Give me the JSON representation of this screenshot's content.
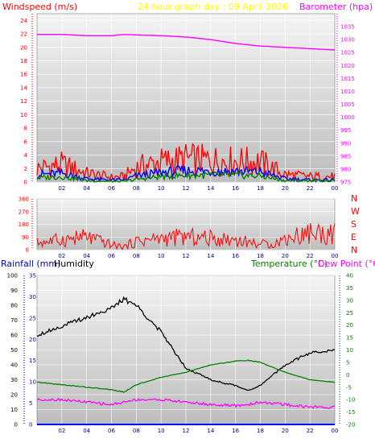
{
  "chart_data": [
    {
      "id": "top",
      "type": "line",
      "title": "24 hour graph day : 09 April 2026",
      "ylabel_left": "Windspeed (m/s)",
      "ylabel_right": "Barometer (hpa)",
      "x_ticks": [
        "02",
        "04",
        "06",
        "08",
        "10",
        "12",
        "14",
        "16",
        "18",
        "20",
        "22",
        "00"
      ],
      "ylim_left": [
        0,
        25
      ],
      "yticks_left": [
        "0",
        "2",
        "4",
        "6",
        "8",
        "10",
        "12",
        "14",
        "16",
        "18",
        "20",
        "22",
        "24"
      ],
      "ylim_right": [
        975,
        1040
      ],
      "yticks_right": [
        "975",
        "980",
        "985",
        "990",
        "995",
        "1000",
        "1005",
        "1010",
        "1015",
        "1020",
        "1025",
        "1030",
        "1035"
      ],
      "hours": [
        0,
        2,
        4,
        6,
        7,
        8,
        10,
        12,
        14,
        16,
        18,
        20,
        22,
        24
      ],
      "series": [
        {
          "key": "gust",
          "color": "#ff0000",
          "axis": "left",
          "values": [
            2.0,
            2.6,
            1.3,
            0.7,
            0.8,
            2.2,
            3.0,
            3.4,
            3.2,
            3.1,
            3.0,
            1.1,
            0.8,
            0.8
          ]
        },
        {
          "key": "avg",
          "color": "#0000ff",
          "axis": "left",
          "values": [
            1.1,
            1.3,
            0.5,
            0.3,
            0.3,
            0.9,
            1.4,
            1.7,
            1.6,
            1.6,
            1.5,
            0.5,
            0.3,
            0.3
          ]
        },
        {
          "key": "wind",
          "color": "#008000",
          "axis": "left",
          "values": [
            0.6,
            0.8,
            0.2,
            0.1,
            0.1,
            0.4,
            0.8,
            1.0,
            1.0,
            1.0,
            0.9,
            0.2,
            0.2,
            0.2
          ]
        },
        {
          "key": "pressure",
          "color": "#ff00ff",
          "axis": "right",
          "values": [
            1032,
            1032,
            1031.5,
            1031.5,
            1032,
            1031.8,
            1031.5,
            1031,
            1030,
            1028.5,
            1027.5,
            1027,
            1026.5,
            1026
          ]
        }
      ]
    },
    {
      "id": "mid",
      "type": "line",
      "ylabel_right": [
        "N",
        "W",
        "S",
        "E",
        "N"
      ],
      "ylim": [
        0,
        360
      ],
      "yticks": [
        "0",
        "90",
        "180",
        "270",
        "360"
      ],
      "x_ticks": [
        "02",
        "04",
        "06",
        "08",
        "10",
        "12",
        "14",
        "16",
        "18",
        "20",
        "22",
        "00"
      ],
      "hours": [
        0,
        2,
        4,
        6,
        7,
        8,
        10,
        12,
        14,
        16,
        18,
        19,
        20,
        21,
        22,
        24
      ],
      "series": [
        {
          "key": "direction",
          "color": "#ff0000",
          "values": [
            50,
            70,
            90,
            35,
            20,
            60,
            80,
            90,
            80,
            70,
            40,
            40,
            75,
            100,
            120,
            110
          ]
        }
      ]
    },
    {
      "id": "bottom",
      "type": "line",
      "ylabel_left": "Rainfall (mm)",
      "ylabel_left2": "Humidity",
      "ylabel_right": "Temperature (°C)",
      "ylabel_right2": "Dew Point (°C)",
      "x_ticks": [
        "02",
        "04",
        "06",
        "08",
        "10",
        "12",
        "14",
        "16",
        "18",
        "20",
        "22",
        "00"
      ],
      "ylim_rain": [
        0,
        35
      ],
      "yticks_rain": [
        "0",
        "5",
        "10",
        "15",
        "20",
        "25",
        "30",
        "35"
      ],
      "ylim_hum": [
        0,
        100
      ],
      "yticks_hum": [
        "0",
        "10",
        "20",
        "30",
        "40",
        "50",
        "60",
        "70",
        "80",
        "90",
        "100"
      ],
      "ylim_temp": [
        -20,
        40
      ],
      "yticks_temp": [
        "-20",
        "-15",
        "-10",
        "-5",
        "0",
        "5",
        "10",
        "15",
        "20",
        "25",
        "30",
        "35",
        "40"
      ],
      "hours": [
        0,
        2,
        4,
        6,
        7,
        8,
        10,
        12,
        14,
        16,
        17,
        18,
        20,
        22,
        24
      ],
      "series": [
        {
          "key": "humidity",
          "color": "#000000",
          "axis": "hum",
          "values": [
            60,
            66,
            72,
            78,
            84,
            80,
            62,
            38,
            30,
            26,
            23,
            26,
            40,
            48,
            50
          ]
        },
        {
          "key": "temperature",
          "color": "#008000",
          "axis": "temp",
          "values": [
            -3,
            -4,
            -5,
            -6,
            -7,
            -4,
            -1,
            1,
            4,
            5.5,
            5.8,
            5,
            1,
            -2,
            -3
          ]
        },
        {
          "key": "dewpoint",
          "color": "#ff00ff",
          "axis": "temp",
          "values": [
            -10,
            -10,
            -11,
            -12,
            -11,
            -10,
            -10,
            -11,
            -12,
            -12.5,
            -12,
            -11,
            -12,
            -13,
            -13
          ]
        },
        {
          "key": "rainfall",
          "color": "#0000ff",
          "axis": "rain",
          "values": [
            0,
            0,
            0,
            0,
            0,
            0,
            0,
            0,
            0,
            0,
            0,
            0,
            0,
            0,
            0
          ]
        }
      ]
    }
  ]
}
